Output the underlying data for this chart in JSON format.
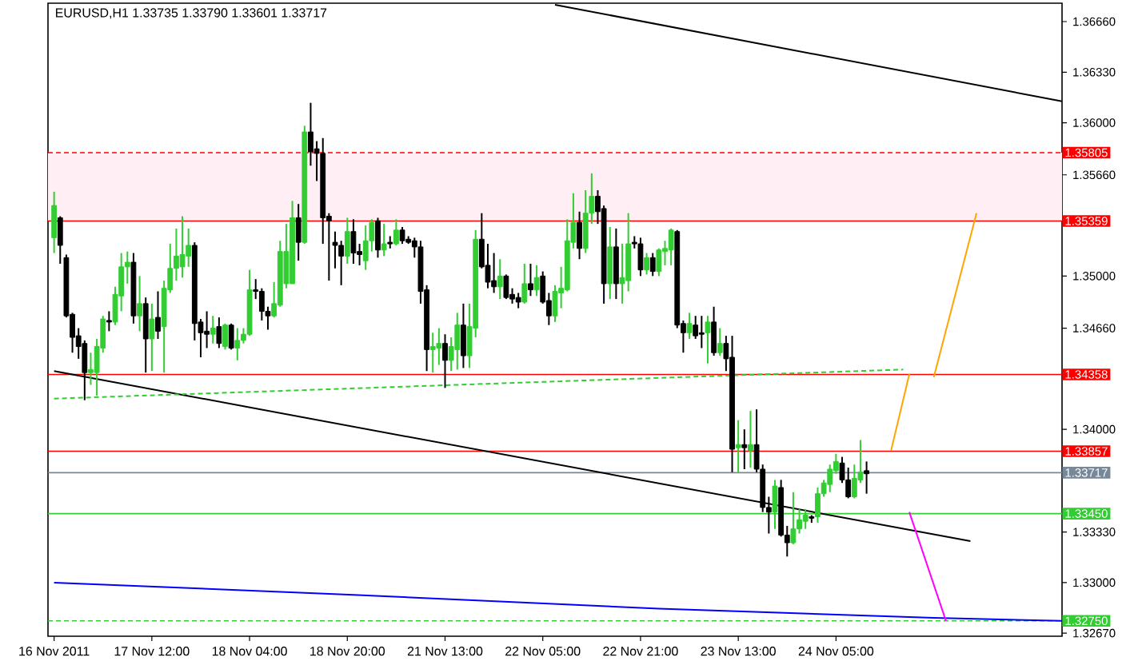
{
  "chart_data": {
    "type": "candlestick",
    "title": "EURUSD,H1  1.33735 1.33790 1.33601 1.33717",
    "categories": [
      "16 Nov 2011",
      null,
      null,
      null,
      null,
      null,
      null,
      null,
      null,
      null,
      null,
      null,
      null,
      null,
      null,
      null,
      "17 Nov 12:00",
      null,
      null,
      null,
      null,
      null,
      null,
      null,
      null,
      null,
      null,
      null,
      null,
      null,
      null,
      null,
      "18 Nov 04:00",
      null,
      null,
      null,
      null,
      null,
      null,
      null,
      null,
      null,
      null,
      null,
      null,
      null,
      null,
      null,
      "18 Nov 20:00",
      null,
      null,
      null,
      null,
      null,
      null,
      null,
      null,
      null,
      null,
      null,
      null,
      null,
      null,
      null,
      "21 Nov 13:00",
      null,
      null,
      null,
      null,
      null,
      null,
      null,
      null,
      null,
      null,
      null,
      null,
      null,
      null,
      null,
      "22 Nov 05:00",
      null,
      null,
      null,
      null,
      null,
      null,
      null,
      null,
      null,
      null,
      null,
      null,
      null,
      null,
      null,
      "22 Nov 21:00",
      null,
      null,
      null,
      null,
      null,
      null,
      null,
      null,
      null,
      null,
      null,
      null,
      null,
      null,
      null,
      "23 Nov 13:00",
      null,
      null,
      null,
      null,
      null,
      null,
      null,
      null,
      null,
      null,
      null,
      null,
      null,
      null,
      null,
      "24 Nov 05:00",
      null,
      null,
      null,
      null,
      null,
      null,
      null,
      null,
      null,
      null,
      null,
      null,
      null,
      null,
      null,
      null,
      null,
      null,
      null,
      null,
      null,
      null,
      null,
      null,
      null,
      null,
      null,
      null,
      null,
      null,
      null,
      null,
      null,
      null,
      null,
      null,
      null
    ],
    "colors": [
      "#32cd32",
      "#000000",
      "#000000",
      "#000000",
      "#000000",
      "#000000",
      "#32cd32",
      "#32cd32",
      "#32cd32",
      "#000000",
      "#32cd32",
      "#32cd32",
      "#32cd32",
      "#000000",
      "#32cd32",
      "#000000",
      "#32cd32",
      "#000000",
      "#32cd32",
      "#32cd32",
      "#32cd32",
      "#32cd32",
      "#32cd32",
      "#000000",
      "#000000",
      "#000000",
      "#32cd32",
      "#000000",
      "#32cd32",
      "#000000",
      "#32cd32",
      "#32cd32",
      "#32cd32",
      "#000000",
      "#000000",
      "#000000",
      "#32cd32",
      "#32cd32",
      "#32cd32",
      "#32cd32",
      "#000000",
      "#32cd32",
      "#000000",
      "#000000",
      "#000000",
      "#000000",
      "#000000",
      "#000000",
      "#32cd32",
      "#000000",
      "#000000",
      "#32cd32",
      "#32cd32",
      "#000000",
      "#32cd32",
      "#000000",
      "#32cd32",
      "#000000",
      "#000000",
      "#000000",
      "#000000",
      "#000000",
      "#32cd32",
      "#32cd32",
      "#000000",
      "#32cd32",
      "#32cd32",
      "#000000",
      "#32cd32",
      "#32cd32",
      "#000000",
      "#000000",
      "#000000",
      "#32cd32",
      "#000000",
      "#000000",
      "#000000",
      "#32cd32",
      "#000000",
      "#32cd32",
      "#000000",
      "#000000",
      "#32cd32",
      "#32cd32",
      "#32cd32",
      "#32cd32",
      "#000000",
      "#32cd32",
      "#32cd32",
      "#000000",
      "#000000",
      "#32cd32",
      "#000000",
      "#32cd32",
      "#32cd32",
      "#000000",
      "#000000",
      "#32cd32",
      "#000000",
      "#32cd32",
      "#32cd32",
      "#32cd32",
      "#000000",
      "#000000",
      "#32cd32",
      "#000000",
      "#000000",
      "#32cd32",
      "#000000",
      "#32cd32",
      "#000000",
      "#000000",
      "#32cd32",
      "#000000",
      "#32cd32",
      "#000000",
      "#000000",
      "#000000",
      "#32cd32",
      "#000000",
      "#000000",
      "#32cd32",
      "#32cd32",
      "#32cd32",
      "#000000",
      "#32cd32",
      "#32cd32",
      "#32cd32",
      "#32cd32",
      "#000000",
      "#000000",
      "#32cd32",
      "#32cd32",
      "#000000",
      null,
      null,
      null,
      null,
      null,
      null,
      null,
      null,
      null,
      null,
      null,
      null,
      null,
      null,
      null,
      null,
      null,
      null,
      null,
      null,
      null,
      null,
      null,
      null,
      null,
      null,
      null,
      null,
      null,
      null,
      null,
      null
    ],
    "ohlc": [
      [
        1.3525,
        1.3555,
        1.3515,
        1.3546
      ],
      [
        1.3538,
        1.3539,
        1.3508,
        1.352
      ],
      [
        1.3512,
        1.3514,
        1.3473,
        1.3474
      ],
      [
        1.3475,
        1.3476,
        1.345,
        1.346
      ],
      [
        1.3461,
        1.3466,
        1.3446,
        1.3454
      ],
      [
        1.3456,
        1.3458,
        1.3419,
        1.3437
      ],
      [
        1.3437,
        1.345,
        1.3429,
        1.3439
      ],
      [
        1.3437,
        1.3459,
        1.3422,
        1.3454
      ],
      [
        1.3453,
        1.3474,
        1.345,
        1.3472
      ],
      [
        1.3471,
        1.3477,
        1.3464,
        1.347
      ],
      [
        1.347,
        1.3493,
        1.3468,
        1.3488
      ],
      [
        1.3487,
        1.3515,
        1.3477,
        1.3506
      ],
      [
        1.3506,
        1.3516,
        1.3495,
        1.3509
      ],
      [
        1.3509,
        1.3515,
        1.3469,
        1.3474
      ],
      [
        1.3474,
        1.35,
        1.3464,
        1.3482
      ],
      [
        1.3482,
        1.3486,
        1.3437,
        1.3459
      ],
      [
        1.3459,
        1.3482,
        1.3438,
        1.3472
      ],
      [
        1.3473,
        1.349,
        1.3459,
        1.3464
      ],
      [
        1.3467,
        1.3497,
        1.3437,
        1.3492
      ],
      [
        1.3491,
        1.3521,
        1.3489,
        1.3505
      ],
      [
        1.3505,
        1.3531,
        1.3497,
        1.3513
      ],
      [
        1.3506,
        1.3539,
        1.3499,
        1.3514
      ],
      [
        1.3513,
        1.3531,
        1.3506,
        1.352
      ],
      [
        1.352,
        1.3522,
        1.3458,
        1.3469
      ],
      [
        1.347,
        1.3472,
        1.3447,
        1.3463
      ],
      [
        1.3464,
        1.3477,
        1.3453,
        1.3462
      ],
      [
        1.3462,
        1.3474,
        1.3456,
        1.3466
      ],
      [
        1.3467,
        1.3473,
        1.3453,
        1.3456
      ],
      [
        1.3454,
        1.3469,
        1.3452,
        1.3468
      ],
      [
        1.3468,
        1.3469,
        1.3452,
        1.3453
      ],
      [
        1.3453,
        1.3466,
        1.3445,
        1.3458
      ],
      [
        1.3458,
        1.3466,
        1.3456,
        1.3462
      ],
      [
        1.3462,
        1.3504,
        1.3461,
        1.3491
      ],
      [
        1.3491,
        1.3498,
        1.3485,
        1.349
      ],
      [
        1.349,
        1.3492,
        1.3471,
        1.3477
      ],
      [
        1.3477,
        1.348,
        1.3465,
        1.3474
      ],
      [
        1.3474,
        1.3496,
        1.3473,
        1.3482
      ],
      [
        1.3481,
        1.3523,
        1.348,
        1.3516
      ],
      [
        1.3495,
        1.3534,
        1.3492,
        1.3516
      ],
      [
        1.3495,
        1.3549,
        1.3495,
        1.3538
      ],
      [
        1.3538,
        1.3547,
        1.351,
        1.3522
      ],
      [
        1.3522,
        1.3598,
        1.3521,
        1.3594
      ],
      [
        1.3594,
        1.3613,
        1.3572,
        1.3581
      ],
      [
        1.3583,
        1.3588,
        1.3562,
        1.358
      ],
      [
        1.358,
        1.359,
        1.3521,
        1.3538
      ],
      [
        1.3539,
        1.3541,
        1.3497,
        1.3536
      ],
      [
        1.3522,
        1.3529,
        1.3505,
        1.352
      ],
      [
        1.352,
        1.3523,
        1.3494,
        1.3513
      ],
      [
        1.3513,
        1.3538,
        1.3508,
        1.3529
      ],
      [
        1.3529,
        1.3537,
        1.3508,
        1.3515
      ],
      [
        1.3516,
        1.3521,
        1.3507,
        1.3514
      ],
      [
        1.351,
        1.3533,
        1.3504,
        1.3523
      ],
      [
        1.3523,
        1.3537,
        1.3516,
        1.3535
      ],
      [
        1.3536,
        1.3538,
        1.3512,
        1.3517
      ],
      [
        1.3517,
        1.3534,
        1.3513,
        1.3521
      ],
      [
        1.3522,
        1.3526,
        1.3518,
        1.3521
      ],
      [
        1.3521,
        1.3537,
        1.352,
        1.353
      ],
      [
        1.353,
        1.3532,
        1.3521,
        1.3523
      ],
      [
        1.3524,
        1.3526,
        1.3521,
        1.3522
      ],
      [
        1.3523,
        1.3525,
        1.3512,
        1.3519
      ],
      [
        1.3519,
        1.3523,
        1.3482,
        1.349
      ],
      [
        1.3491,
        1.3494,
        1.3438,
        1.3452
      ],
      [
        1.3452,
        1.3463,
        1.3437,
        1.3454
      ],
      [
        1.3453,
        1.3466,
        1.3442,
        1.3456
      ],
      [
        1.3456,
        1.3462,
        1.3427,
        1.3445
      ],
      [
        1.3445,
        1.346,
        1.3438,
        1.3454
      ],
      [
        1.3452,
        1.3476,
        1.3439,
        1.3468
      ],
      [
        1.3468,
        1.3482,
        1.344,
        1.3448
      ],
      [
        1.3448,
        1.3482,
        1.344,
        1.3467
      ],
      [
        1.3466,
        1.353,
        1.346,
        1.3524
      ],
      [
        1.3524,
        1.3541,
        1.3505,
        1.3506
      ],
      [
        1.3507,
        1.3521,
        1.3492,
        1.3496
      ],
      [
        1.3497,
        1.3515,
        1.3489,
        1.3493
      ],
      [
        1.3493,
        1.3511,
        1.3485,
        1.35
      ],
      [
        1.35,
        1.3501,
        1.3485,
        1.3486
      ],
      [
        1.3488,
        1.3492,
        1.3482,
        1.3485
      ],
      [
        1.3486,
        1.3489,
        1.3479,
        1.3483
      ],
      [
        1.3483,
        1.3508,
        1.3482,
        1.3495
      ],
      [
        1.3495,
        1.3508,
        1.3487,
        1.3491
      ],
      [
        1.3491,
        1.3507,
        1.3487,
        1.3499
      ],
      [
        1.35,
        1.3503,
        1.3482,
        1.3483
      ],
      [
        1.3484,
        1.3489,
        1.3468,
        1.3474
      ],
      [
        1.3474,
        1.3494,
        1.347,
        1.349
      ],
      [
        1.3489,
        1.3506,
        1.3479,
        1.3492
      ],
      [
        1.3491,
        1.3537,
        1.349,
        1.3523
      ],
      [
        1.3522,
        1.3554,
        1.3518,
        1.3535
      ],
      [
        1.3535,
        1.3542,
        1.3511,
        1.3518
      ],
      [
        1.3518,
        1.3556,
        1.3515,
        1.3541
      ],
      [
        1.3541,
        1.3567,
        1.3534,
        1.3552
      ],
      [
        1.3552,
        1.3556,
        1.3534,
        1.3542
      ],
      [
        1.3544,
        1.3546,
        1.3482,
        1.3495
      ],
      [
        1.3495,
        1.3532,
        1.3485,
        1.3519
      ],
      [
        1.3519,
        1.3531,
        1.3485,
        1.3495
      ],
      [
        1.3495,
        1.3521,
        1.3482,
        1.3499
      ],
      [
        1.3497,
        1.3541,
        1.349,
        1.3521
      ],
      [
        1.3522,
        1.3526,
        1.3518,
        1.3521
      ],
      [
        1.3521,
        1.3525,
        1.35,
        1.3504
      ],
      [
        1.3504,
        1.3515,
        1.3501,
        1.3512
      ],
      [
        1.3512,
        1.3515,
        1.35,
        1.3503
      ],
      [
        1.3503,
        1.3518,
        1.35,
        1.3517
      ],
      [
        1.3516,
        1.3523,
        1.3507,
        1.3518
      ],
      [
        1.3517,
        1.3531,
        1.3507,
        1.353
      ],
      [
        1.3529,
        1.353,
        1.3466,
        1.3468
      ],
      [
        1.3469,
        1.3471,
        1.345,
        1.3463
      ],
      [
        1.3463,
        1.3476,
        1.3459,
        1.3469
      ],
      [
        1.3468,
        1.3474,
        1.3459,
        1.3461
      ],
      [
        1.3463,
        1.3474,
        1.3453,
        1.3462
      ],
      [
        1.3463,
        1.3474,
        1.3443,
        1.347
      ],
      [
        1.347,
        1.348,
        1.3448,
        1.345
      ],
      [
        1.345,
        1.3466,
        1.3448,
        1.3456
      ],
      [
        1.3456,
        1.3461,
        1.3438,
        1.3446
      ],
      [
        1.3447,
        1.3461,
        1.3372,
        1.3387
      ],
      [
        1.3388,
        1.3406,
        1.3372,
        1.339
      ],
      [
        1.339,
        1.34,
        1.3374,
        1.3388
      ],
      [
        1.3386,
        1.3412,
        1.3375,
        1.339
      ],
      [
        1.339,
        1.3413,
        1.3372,
        1.3374
      ],
      [
        1.3374,
        1.3377,
        1.3346,
        1.3349
      ],
      [
        1.3349,
        1.3356,
        1.3332,
        1.3346
      ],
      [
        1.3346,
        1.3367,
        1.3335,
        1.3363
      ],
      [
        1.3362,
        1.3367,
        1.333,
        1.3331
      ],
      [
        1.3331,
        1.3337,
        1.3317,
        1.3326
      ],
      [
        1.3326,
        1.3359,
        1.3325,
        1.3335
      ],
      [
        1.3335,
        1.3348,
        1.3332,
        1.3341
      ],
      [
        1.334,
        1.3348,
        1.3335,
        1.3344
      ],
      [
        1.3343,
        1.3344,
        1.3339,
        1.3342
      ],
      [
        1.3343,
        1.3362,
        1.3339,
        1.3358
      ],
      [
        1.3358,
        1.3367,
        1.3356,
        1.3365
      ],
      [
        1.3364,
        1.3377,
        1.3359,
        1.3374
      ],
      [
        1.3373,
        1.3384,
        1.3371,
        1.3379
      ],
      [
        1.3378,
        1.3382,
        1.3365,
        1.3367
      ],
      [
        1.3367,
        1.3375,
        1.3355,
        1.3356
      ],
      [
        1.3356,
        1.3377,
        1.3355,
        1.3368
      ],
      [
        1.3367,
        1.3393,
        1.3365,
        1.3372
      ],
      [
        1.3373,
        1.3379,
        1.3358,
        1.3371
      ],
      null,
      null,
      null,
      null,
      null,
      null,
      null,
      null,
      null,
      null,
      null,
      null,
      null,
      null,
      null,
      null,
      null,
      null,
      null,
      null,
      null,
      null,
      null,
      null,
      null,
      null,
      null,
      null,
      null,
      null,
      null,
      null
    ],
    "series": [
      {
        "type": "line",
        "color": "#000000",
        "values": [
          null,
          null,
          null,
          null,
          null,
          null,
          null,
          null,
          null,
          null,
          null,
          null,
          null,
          null,
          null,
          null,
          null,
          null,
          null,
          null,
          null,
          null,
          null,
          null,
          null,
          null,
          null,
          null,
          null,
          null,
          null,
          null,
          null,
          null,
          null,
          null,
          null,
          null,
          null,
          null,
          null,
          null,
          null,
          null,
          null,
          null,
          null,
          null,
          null,
          null,
          null,
          null,
          null,
          null,
          null,
          null,
          null,
          null,
          null,
          null,
          null,
          null,
          null,
          null,
          null,
          null,
          null,
          null,
          null,
          null,
          null,
          null,
          null,
          null,
          null,
          null,
          null,
          null,
          null,
          null,
          null,
          null,
          1.3677,
          null,
          null,
          null,
          null,
          null,
          null,
          null,
          null,
          null,
          null,
          null,
          null,
          null,
          null,
          null,
          null,
          null,
          null,
          null,
          null,
          null,
          null,
          null,
          null,
          null,
          null,
          null,
          null,
          null,
          null,
          null,
          null,
          null,
          null,
          null,
          null,
          null,
          null,
          null,
          null,
          null,
          null,
          null,
          null,
          null,
          null,
          null,
          null,
          null,
          null,
          null,
          null,
          null,
          null,
          null,
          null,
          null,
          null,
          null,
          null,
          null,
          null,
          null,
          null,
          null,
          null,
          null,
          null,
          null,
          null,
          null,
          null,
          null,
          null,
          null,
          null,
          null,
          null,
          null,
          null,
          null,
          null,
          1.3614
        ]
      },
      {
        "type": "line",
        "color": "#000000",
        "values": [
          1.3438,
          null,
          null,
          null,
          null,
          null,
          null,
          null,
          null,
          null,
          null,
          null,
          null,
          null,
          null,
          null,
          null,
          null,
          null,
          null,
          null,
          null,
          null,
          null,
          null,
          null,
          null,
          null,
          null,
          null,
          null,
          null,
          null,
          null,
          null,
          null,
          null,
          null,
          null,
          null,
          null,
          null,
          null,
          null,
          null,
          null,
          null,
          null,
          null,
          null,
          null,
          null,
          null,
          null,
          null,
          null,
          null,
          null,
          null,
          null,
          null,
          null,
          null,
          null,
          null,
          null,
          null,
          null,
          null,
          null,
          null,
          null,
          null,
          null,
          null,
          null,
          null,
          null,
          null,
          null,
          null,
          null,
          null,
          null,
          null,
          null,
          null,
          null,
          null,
          null,
          null,
          null,
          null,
          null,
          null,
          null,
          null,
          null,
          null,
          null,
          null,
          null,
          null,
          null,
          null,
          null,
          null,
          null,
          null,
          null,
          null,
          null,
          null,
          null,
          null,
          null,
          null,
          null,
          null,
          null,
          null,
          null,
          null,
          null,
          null,
          null,
          null,
          null,
          null,
          null,
          null,
          null,
          null,
          null,
          null,
          null,
          null,
          null,
          null,
          null,
          null,
          null,
          null,
          null,
          null,
          null,
          null,
          null,
          null,
          null,
          1.3327,
          null,
          null,
          null,
          null,
          null,
          null,
          null,
          null,
          null,
          null,
          null,
          null,
          null,
          null,
          null
        ]
      },
      {
        "type": "line",
        "color": "#32cd32",
        "line_style": "dashed",
        "values": [
          1.342,
          null,
          null,
          null,
          null,
          null,
          null,
          null,
          null,
          null,
          null,
          null,
          null,
          null,
          null,
          null,
          null,
          null,
          null,
          null,
          null,
          null,
          null,
          null,
          null,
          null,
          null,
          null,
          null,
          null,
          null,
          null,
          null,
          null,
          null,
          null,
          null,
          null,
          null,
          null,
          null,
          null,
          null,
          null,
          null,
          null,
          null,
          null,
          null,
          null,
          null,
          null,
          null,
          null,
          null,
          null,
          null,
          null,
          null,
          null,
          null,
          null,
          null,
          null,
          null,
          null,
          null,
          null,
          null,
          null,
          null,
          null,
          null,
          null,
          null,
          null,
          null,
          null,
          null,
          null,
          null,
          null,
          null,
          null,
          null,
          null,
          null,
          null,
          null,
          null,
          null,
          null,
          null,
          null,
          null,
          null,
          null,
          null,
          null,
          null,
          null,
          null,
          null,
          null,
          null,
          null,
          null,
          null,
          null,
          null,
          null,
          null,
          null,
          null,
          null,
          null,
          null,
          null,
          null,
          null,
          null,
          null,
          null,
          null,
          null,
          null,
          null,
          null,
          null,
          null,
          null,
          null,
          null,
          null,
          null,
          null,
          null,
          null,
          null,
          1.3439,
          null,
          null,
          null,
          null,
          null,
          null,
          null,
          null,
          null,
          null,
          null,
          null,
          null,
          null,
          null,
          null,
          null,
          null,
          null,
          null,
          null,
          null,
          null,
          null,
          null,
          null
        ]
      },
      {
        "type": "line",
        "color": "#0000ff",
        "values": [
          1.33,
          null,
          null,
          null,
          null,
          null,
          null,
          null,
          null,
          null,
          null,
          null,
          null,
          null,
          null,
          null,
          null,
          null,
          null,
          null,
          null,
          null,
          null,
          null,
          null,
          null,
          null,
          null,
          null,
          null,
          null,
          null,
          null,
          null,
          null,
          null,
          null,
          null,
          null,
          null,
          null,
          null,
          null,
          null,
          null,
          null,
          null,
          null,
          null,
          1.3292,
          null,
          null,
          null,
          null,
          null,
          null,
          null,
          null,
          null,
          null,
          null,
          null,
          null,
          null,
          null,
          null,
          null,
          null,
          null,
          null,
          null,
          null,
          null,
          null,
          null,
          null,
          null,
          null,
          null,
          null,
          null,
          null,
          null,
          null,
          null,
          null,
          null,
          null,
          null,
          null,
          null,
          null,
          null,
          null,
          null,
          null,
          null,
          null,
          null,
          1.3283,
          null,
          null,
          null,
          null,
          null,
          null,
          null,
          null,
          null,
          null,
          null,
          null,
          null,
          null,
          null,
          null,
          null,
          null,
          null,
          null,
          null,
          null,
          null,
          null,
          null,
          null,
          null,
          null,
          null,
          null,
          null,
          null,
          null,
          null,
          null,
          null,
          null,
          null,
          null,
          null,
          null,
          null,
          null,
          null,
          1.3277,
          null,
          null,
          null,
          null,
          null,
          null,
          null,
          null,
          null,
          null,
          null,
          null,
          null,
          null,
          null,
          null,
          null,
          null,
          null,
          null,
          1.3275
        ]
      },
      {
        "type": "line",
        "color": "#ffa500",
        "values": [
          null,
          null,
          null,
          null,
          null,
          null,
          null,
          null,
          null,
          null,
          null,
          null,
          null,
          null,
          null,
          null,
          null,
          null,
          null,
          null,
          null,
          null,
          null,
          null,
          null,
          null,
          null,
          null,
          null,
          null,
          null,
          null,
          null,
          null,
          null,
          null,
          null,
          null,
          null,
          null,
          null,
          null,
          null,
          null,
          null,
          null,
          null,
          null,
          null,
          null,
          null,
          null,
          null,
          null,
          null,
          null,
          null,
          null,
          null,
          null,
          null,
          null,
          null,
          null,
          null,
          null,
          null,
          null,
          null,
          null,
          null,
          null,
          null,
          null,
          null,
          null,
          null,
          null,
          null,
          null,
          null,
          null,
          null,
          null,
          null,
          null,
          null,
          null,
          null,
          null,
          null,
          null,
          null,
          null,
          null,
          null,
          null,
          null,
          null,
          null,
          null,
          null,
          null,
          null,
          null,
          null,
          null,
          null,
          null,
          null,
          null,
          null,
          null,
          null,
          null,
          null,
          null,
          null,
          null,
          null,
          null,
          null,
          null,
          null,
          null,
          null,
          null,
          null,
          null,
          null,
          null,
          null,
          null,
          null,
          null,
          null,
          null,
          1.3386,
          null,
          null,
          1.3436,
          null,
          null,
          null,
          null,
          null,
          null,
          null,
          null,
          null,
          null,
          null,
          null,
          null,
          null,
          null,
          null,
          null,
          null,
          null,
          null,
          null,
          null,
          null,
          null,
          null
        ]
      },
      {
        "type": "line",
        "color": "#ffa500",
        "values": [
          null,
          null,
          null,
          null,
          null,
          null,
          null,
          null,
          null,
          null,
          null,
          null,
          null,
          null,
          null,
          null,
          null,
          null,
          null,
          null,
          null,
          null,
          null,
          null,
          null,
          null,
          null,
          null,
          null,
          null,
          null,
          null,
          null,
          null,
          null,
          null,
          null,
          null,
          null,
          null,
          null,
          null,
          null,
          null,
          null,
          null,
          null,
          null,
          null,
          null,
          null,
          null,
          null,
          null,
          null,
          null,
          null,
          null,
          null,
          null,
          null,
          null,
          null,
          null,
          null,
          null,
          null,
          null,
          null,
          null,
          null,
          null,
          null,
          null,
          null,
          null,
          null,
          null,
          null,
          null,
          null,
          null,
          null,
          null,
          null,
          null,
          null,
          null,
          null,
          null,
          null,
          null,
          null,
          null,
          null,
          null,
          null,
          null,
          null,
          null,
          null,
          null,
          null,
          null,
          null,
          null,
          null,
          null,
          null,
          null,
          null,
          null,
          null,
          null,
          null,
          null,
          null,
          null,
          null,
          null,
          null,
          null,
          null,
          null,
          null,
          null,
          null,
          null,
          null,
          null,
          null,
          null,
          null,
          null,
          null,
          null,
          null,
          null,
          null,
          null,
          null,
          null,
          null,
          null,
          1.3434,
          null,
          null,
          null,
          null,
          null,
          null,
          1.3541,
          null,
          null,
          null,
          null,
          null,
          null,
          null,
          null,
          null,
          null,
          null,
          null,
          null,
          null
        ]
      },
      {
        "type": "line",
        "color": "#ff00ff",
        "values": [
          null,
          null,
          null,
          null,
          null,
          null,
          null,
          null,
          null,
          null,
          null,
          null,
          null,
          null,
          null,
          null,
          null,
          null,
          null,
          null,
          null,
          null,
          null,
          null,
          null,
          null,
          null,
          null,
          null,
          null,
          null,
          null,
          null,
          null,
          null,
          null,
          null,
          null,
          null,
          null,
          null,
          null,
          null,
          null,
          null,
          null,
          null,
          null,
          null,
          null,
          null,
          null,
          null,
          null,
          null,
          null,
          null,
          null,
          null,
          null,
          null,
          null,
          null,
          null,
          null,
          null,
          null,
          null,
          null,
          null,
          null,
          null,
          null,
          null,
          null,
          null,
          null,
          null,
          null,
          null,
          null,
          null,
          null,
          null,
          null,
          null,
          null,
          null,
          null,
          null,
          null,
          null,
          null,
          null,
          null,
          null,
          null,
          null,
          null,
          null,
          null,
          null,
          null,
          null,
          null,
          null,
          null,
          null,
          null,
          null,
          null,
          null,
          null,
          null,
          null,
          null,
          null,
          null,
          null,
          null,
          null,
          null,
          null,
          null,
          null,
          null,
          null,
          null,
          null,
          null,
          null,
          null,
          null,
          null,
          null,
          null,
          null,
          null,
          null,
          null,
          1.3346,
          null,
          null,
          null,
          null,
          null,
          1.3275,
          null,
          null,
          null,
          null,
          null,
          null,
          null,
          null,
          null,
          null,
          null,
          null,
          null,
          null,
          null,
          null,
          null,
          null,
          null
        ]
      }
    ],
    "bands": [
      {
        "axis": "y",
        "from": 1.35359,
        "to": 1.35805,
        "color": "#ffeef3"
      }
    ],
    "ref_lines": [
      {
        "axis": "y",
        "value": 1.35805,
        "label": "1.35805",
        "color": "#ff0000",
        "line_style": "dashed"
      },
      {
        "axis": "y",
        "value": 1.35359,
        "label": "1.35359",
        "color": "#ff0000"
      },
      {
        "axis": "y",
        "value": 1.34358,
        "label": "1.34358",
        "color": "#ff0000"
      },
      {
        "axis": "y",
        "value": 1.33857,
        "label": "1.33857",
        "color": "#ff0000"
      },
      {
        "axis": "y",
        "value": 1.33717,
        "label": "1.33717",
        "color": "#778899"
      },
      {
        "axis": "y",
        "value": 1.3345,
        "label": "1.33450",
        "color": "#32cd32"
      },
      {
        "axis": "y",
        "value": 1.3275,
        "label": "1.32750",
        "color": "#32cd32",
        "line_style": "dashed"
      }
    ],
    "ylim": [
      1.3265,
      1.3678
    ],
    "yticks": [
      {
        "value": 1.3666,
        "label": "1.36660"
      },
      {
        "value": 1.3633,
        "label": "1.36330"
      },
      {
        "value": 1.36,
        "label": "1.36000"
      },
      {
        "value": 1.3566,
        "label": "1.35660"
      },
      {
        "value": 1.35,
        "label": "1.35000"
      },
      {
        "value": 1.3466,
        "label": "1.34660"
      },
      {
        "value": 1.34,
        "label": "1.34000"
      },
      {
        "value": 1.3333,
        "label": "1.33330"
      },
      {
        "value": 1.33,
        "label": "1.33000"
      },
      {
        "value": 1.3267,
        "label": "1.32670"
      }
    ],
    "grid": false
  }
}
